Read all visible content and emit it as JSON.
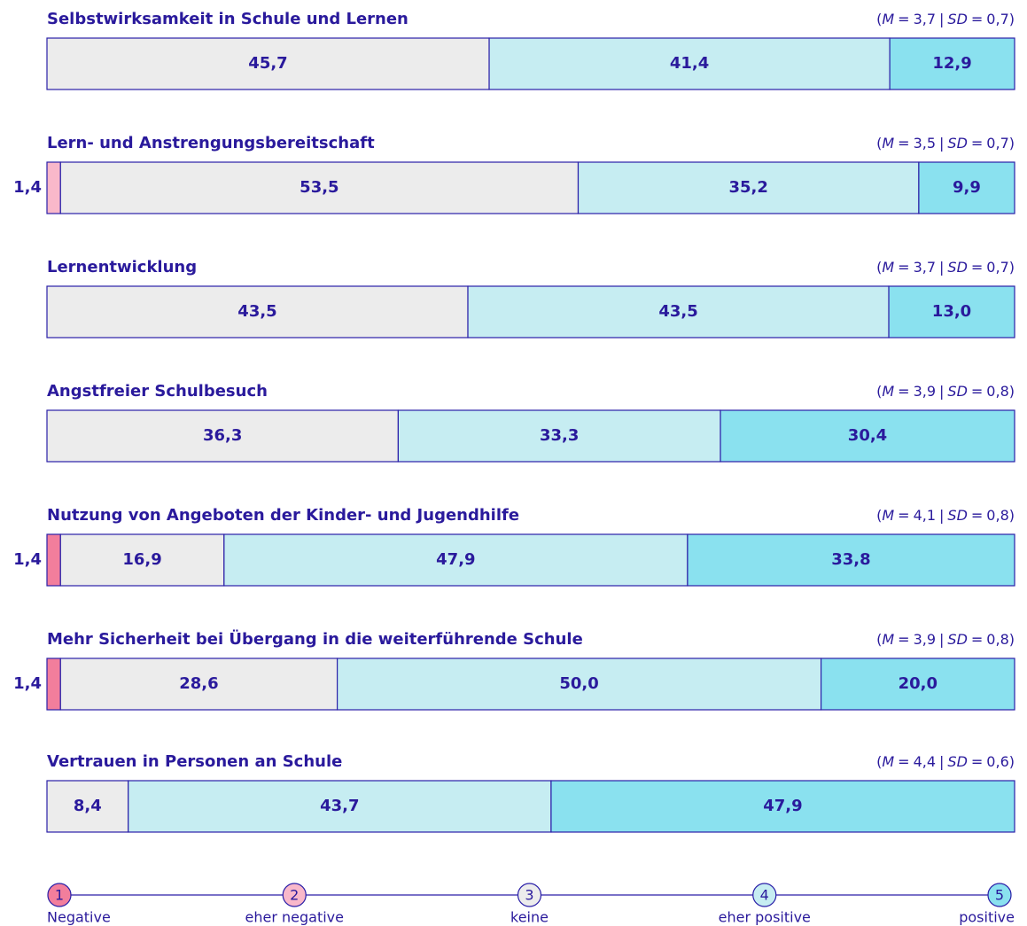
{
  "chart_data": {
    "type": "stacked-bar",
    "orientation": "horizontal",
    "categories": [
      "Selbstwirksamkeit in Schule und Lernen",
      "Lern- und Anstrengungsbereitschaft",
      "Lernentwicklung",
      "Angstfreier Schulbesuch",
      "Nutzung von Angeboten der Kinder- und Jugendhilfe",
      "Mehr Sicherheit bei Übergang in die weiterführende Schule",
      "Vertrauen in Personen an Schule"
    ],
    "stat_format": {
      "open": "(",
      "mean": "M",
      "eq": "=",
      "sep": "|",
      "sd": "SD",
      "close": ")"
    },
    "stats": [
      {
        "M": "3,7",
        "SD": "0,7"
      },
      {
        "M": "3,5",
        "SD": "0,7"
      },
      {
        "M": "3,7",
        "SD": "0,7"
      },
      {
        "M": "3,9",
        "SD": "0,8"
      },
      {
        "M": "4,1",
        "SD": "0,8"
      },
      {
        "M": "3,9",
        "SD": "0,8"
      },
      {
        "M": "4,4",
        "SD": "0,6"
      }
    ],
    "xlim": [
      0,
      100
    ],
    "series": [
      {
        "name": "Negative",
        "code": "1",
        "color": "#f27e9c",
        "values": [
          null,
          null,
          null,
          null,
          1.4,
          1.4,
          null
        ],
        "value_labels": [
          null,
          null,
          null,
          null,
          "1,4",
          "1,4",
          null
        ]
      },
      {
        "name": "eher negative",
        "code": "2",
        "color": "#f9b8ca",
        "values": [
          null,
          1.4,
          null,
          null,
          null,
          null,
          null
        ],
        "value_labels": [
          null,
          "1,4",
          null,
          null,
          null,
          null,
          null
        ]
      },
      {
        "name": "keine",
        "code": "3",
        "color": "#ececec",
        "values": [
          45.7,
          53.5,
          43.5,
          36.3,
          16.9,
          28.6,
          8.4
        ],
        "value_labels": [
          "45,7",
          "53,5",
          "43,5",
          "36,3",
          "16,9",
          "28,6",
          "8,4"
        ]
      },
      {
        "name": "eher positive",
        "code": "4",
        "color": "#c6edf2",
        "values": [
          41.4,
          35.2,
          43.5,
          33.3,
          47.9,
          50.0,
          43.7
        ],
        "value_labels": [
          "41,4",
          "35,2",
          "43,5",
          "33,3",
          "47,9",
          "50,0",
          "43,7"
        ]
      },
      {
        "name": "positive",
        "code": "5",
        "color": "#8ae1ef",
        "values": [
          12.9,
          9.9,
          13.0,
          30.4,
          33.8,
          20.0,
          47.9
        ],
        "value_labels": [
          "12,9",
          "9,9",
          "13,0",
          "30,4",
          "33,8",
          "20,0",
          "47,9"
        ]
      }
    ]
  }
}
